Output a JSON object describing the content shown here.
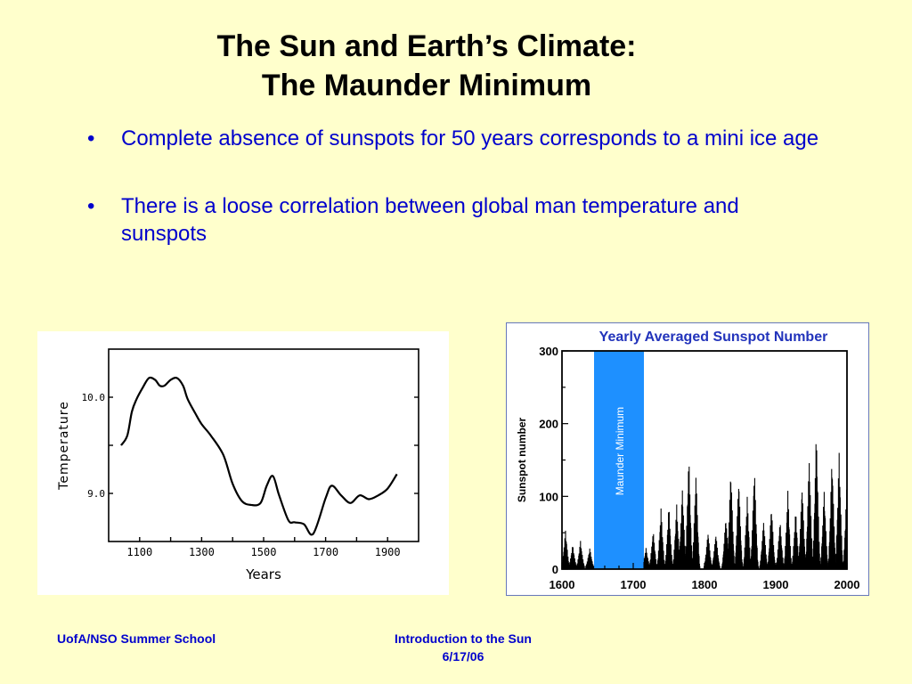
{
  "slide": {
    "title_line1": "The Sun and Earth’s Climate:",
    "title_line2": "The Maunder Minimum",
    "bullet_char": "•",
    "bullets": [
      "Complete absence of sunspots for 50 years corresponds to a mini ice age",
      "There is a loose correlation between global man temperature and sunspots"
    ],
    "footer_left": "UofA/NSO Summer School",
    "footer_right_line1": "Introduction to the Sun",
    "footer_right_line2": "6/17/06"
  },
  "colors": {
    "background": "#ffffcc",
    "title": "#000000",
    "body_text": "#0000cc",
    "maunder_band": "#1e90ff",
    "sunspot_title": "#2233bb"
  },
  "chart_data": [
    {
      "type": "line",
      "title": "",
      "xlabel": "Years",
      "ylabel": "Temperature",
      "x_tick_labels": [
        "1100",
        "1300",
        "1500",
        "1700",
        "1900"
      ],
      "y_tick_labels": [
        "10.0",
        "9.0"
      ],
      "xlim": [
        1000,
        2000
      ],
      "ylim": [
        8.5,
        10.5
      ],
      "series": [
        {
          "x": [
            1040,
            1060,
            1075,
            1090,
            1110,
            1130,
            1150,
            1165,
            1180,
            1200,
            1220,
            1240,
            1255,
            1280,
            1300,
            1330,
            1370,
            1400,
            1430,
            1460,
            1490,
            1510,
            1530,
            1550,
            1580,
            1600,
            1630,
            1660,
            1700,
            1720,
            1750,
            1780,
            1810,
            1840,
            1870,
            1900,
            1930
          ],
          "y": [
            9.5,
            9.6,
            9.85,
            9.98,
            10.1,
            10.2,
            10.18,
            10.12,
            10.12,
            10.18,
            10.2,
            10.12,
            9.98,
            9.83,
            9.72,
            9.6,
            9.4,
            9.1,
            8.92,
            8.88,
            8.9,
            9.08,
            9.18,
            8.98,
            8.72,
            8.7,
            8.68,
            8.58,
            8.95,
            9.08,
            8.98,
            8.9,
            8.98,
            8.94,
            8.98,
            9.05,
            9.2
          ]
        }
      ]
    },
    {
      "type": "bar",
      "title": "Yearly Averaged Sunspot Number",
      "xlabel": "",
      "ylabel": "Sunspot number",
      "x_tick_labels": [
        "1600",
        "1700",
        "1800",
        "1900",
        "2000"
      ],
      "y_tick_labels": [
        "0",
        "100",
        "200",
        "300"
      ],
      "xlim": [
        1600,
        2000
      ],
      "ylim": [
        0,
        300
      ],
      "annotation": "Maunder Minimum",
      "band": [
        1645,
        1715
      ],
      "cycle_peaks": [
        {
          "year": 1605,
          "value": 50
        },
        {
          "year": 1615,
          "value": 30
        },
        {
          "year": 1626,
          "value": 35
        },
        {
          "year": 1639,
          "value": 25
        },
        {
          "year": 1718,
          "value": 25
        },
        {
          "year": 1728,
          "value": 50
        },
        {
          "year": 1739,
          "value": 80
        },
        {
          "year": 1750,
          "value": 85
        },
        {
          "year": 1761,
          "value": 85
        },
        {
          "year": 1769,
          "value": 110
        },
        {
          "year": 1778,
          "value": 155
        },
        {
          "year": 1788,
          "value": 130
        },
        {
          "year": 1805,
          "value": 48
        },
        {
          "year": 1816,
          "value": 46
        },
        {
          "year": 1830,
          "value": 70
        },
        {
          "year": 1837,
          "value": 138
        },
        {
          "year": 1848,
          "value": 124
        },
        {
          "year": 1860,
          "value": 96
        },
        {
          "year": 1870,
          "value": 139
        },
        {
          "year": 1883,
          "value": 64
        },
        {
          "year": 1894,
          "value": 85
        },
        {
          "year": 1906,
          "value": 64
        },
        {
          "year": 1917,
          "value": 104
        },
        {
          "year": 1928,
          "value": 78
        },
        {
          "year": 1937,
          "value": 114
        },
        {
          "year": 1947,
          "value": 152
        },
        {
          "year": 1957,
          "value": 190
        },
        {
          "year": 1968,
          "value": 106
        },
        {
          "year": 1979,
          "value": 155
        },
        {
          "year": 1989,
          "value": 158
        },
        {
          "year": 2000,
          "value": 120
        }
      ]
    }
  ]
}
